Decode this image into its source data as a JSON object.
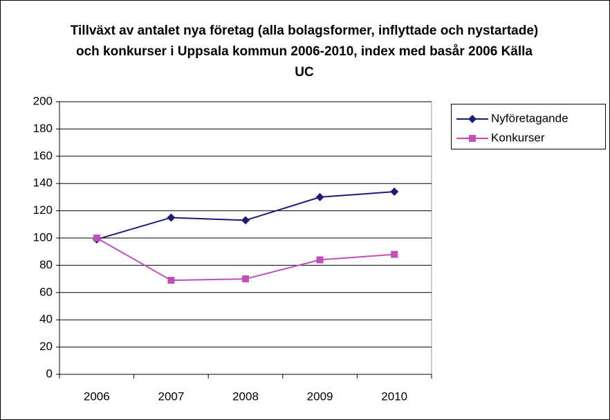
{
  "chart_data": {
    "type": "line",
    "title": "Tillväxt av antalet nya företag (alla bolagsformer, inflyttade och nystartade) och konkurser i Uppsala kommun 2006-2010, index med basår 2006 Källa UC",
    "categories": [
      "2006",
      "2007",
      "2008",
      "2009",
      "2010"
    ],
    "series": [
      {
        "name": "Nyföretagande",
        "color": "#1c1c78",
        "marker": "diamond",
        "values": [
          99,
          115,
          113,
          130,
          134
        ]
      },
      {
        "name": "Konkurser",
        "color": "#c04fba",
        "marker": "square",
        "values": [
          100,
          69,
          70,
          84,
          88
        ]
      }
    ],
    "ylim": [
      0,
      200
    ],
    "yticks": [
      0,
      20,
      40,
      60,
      80,
      100,
      120,
      140,
      160,
      180,
      200
    ],
    "grid": true,
    "legend": "right"
  }
}
